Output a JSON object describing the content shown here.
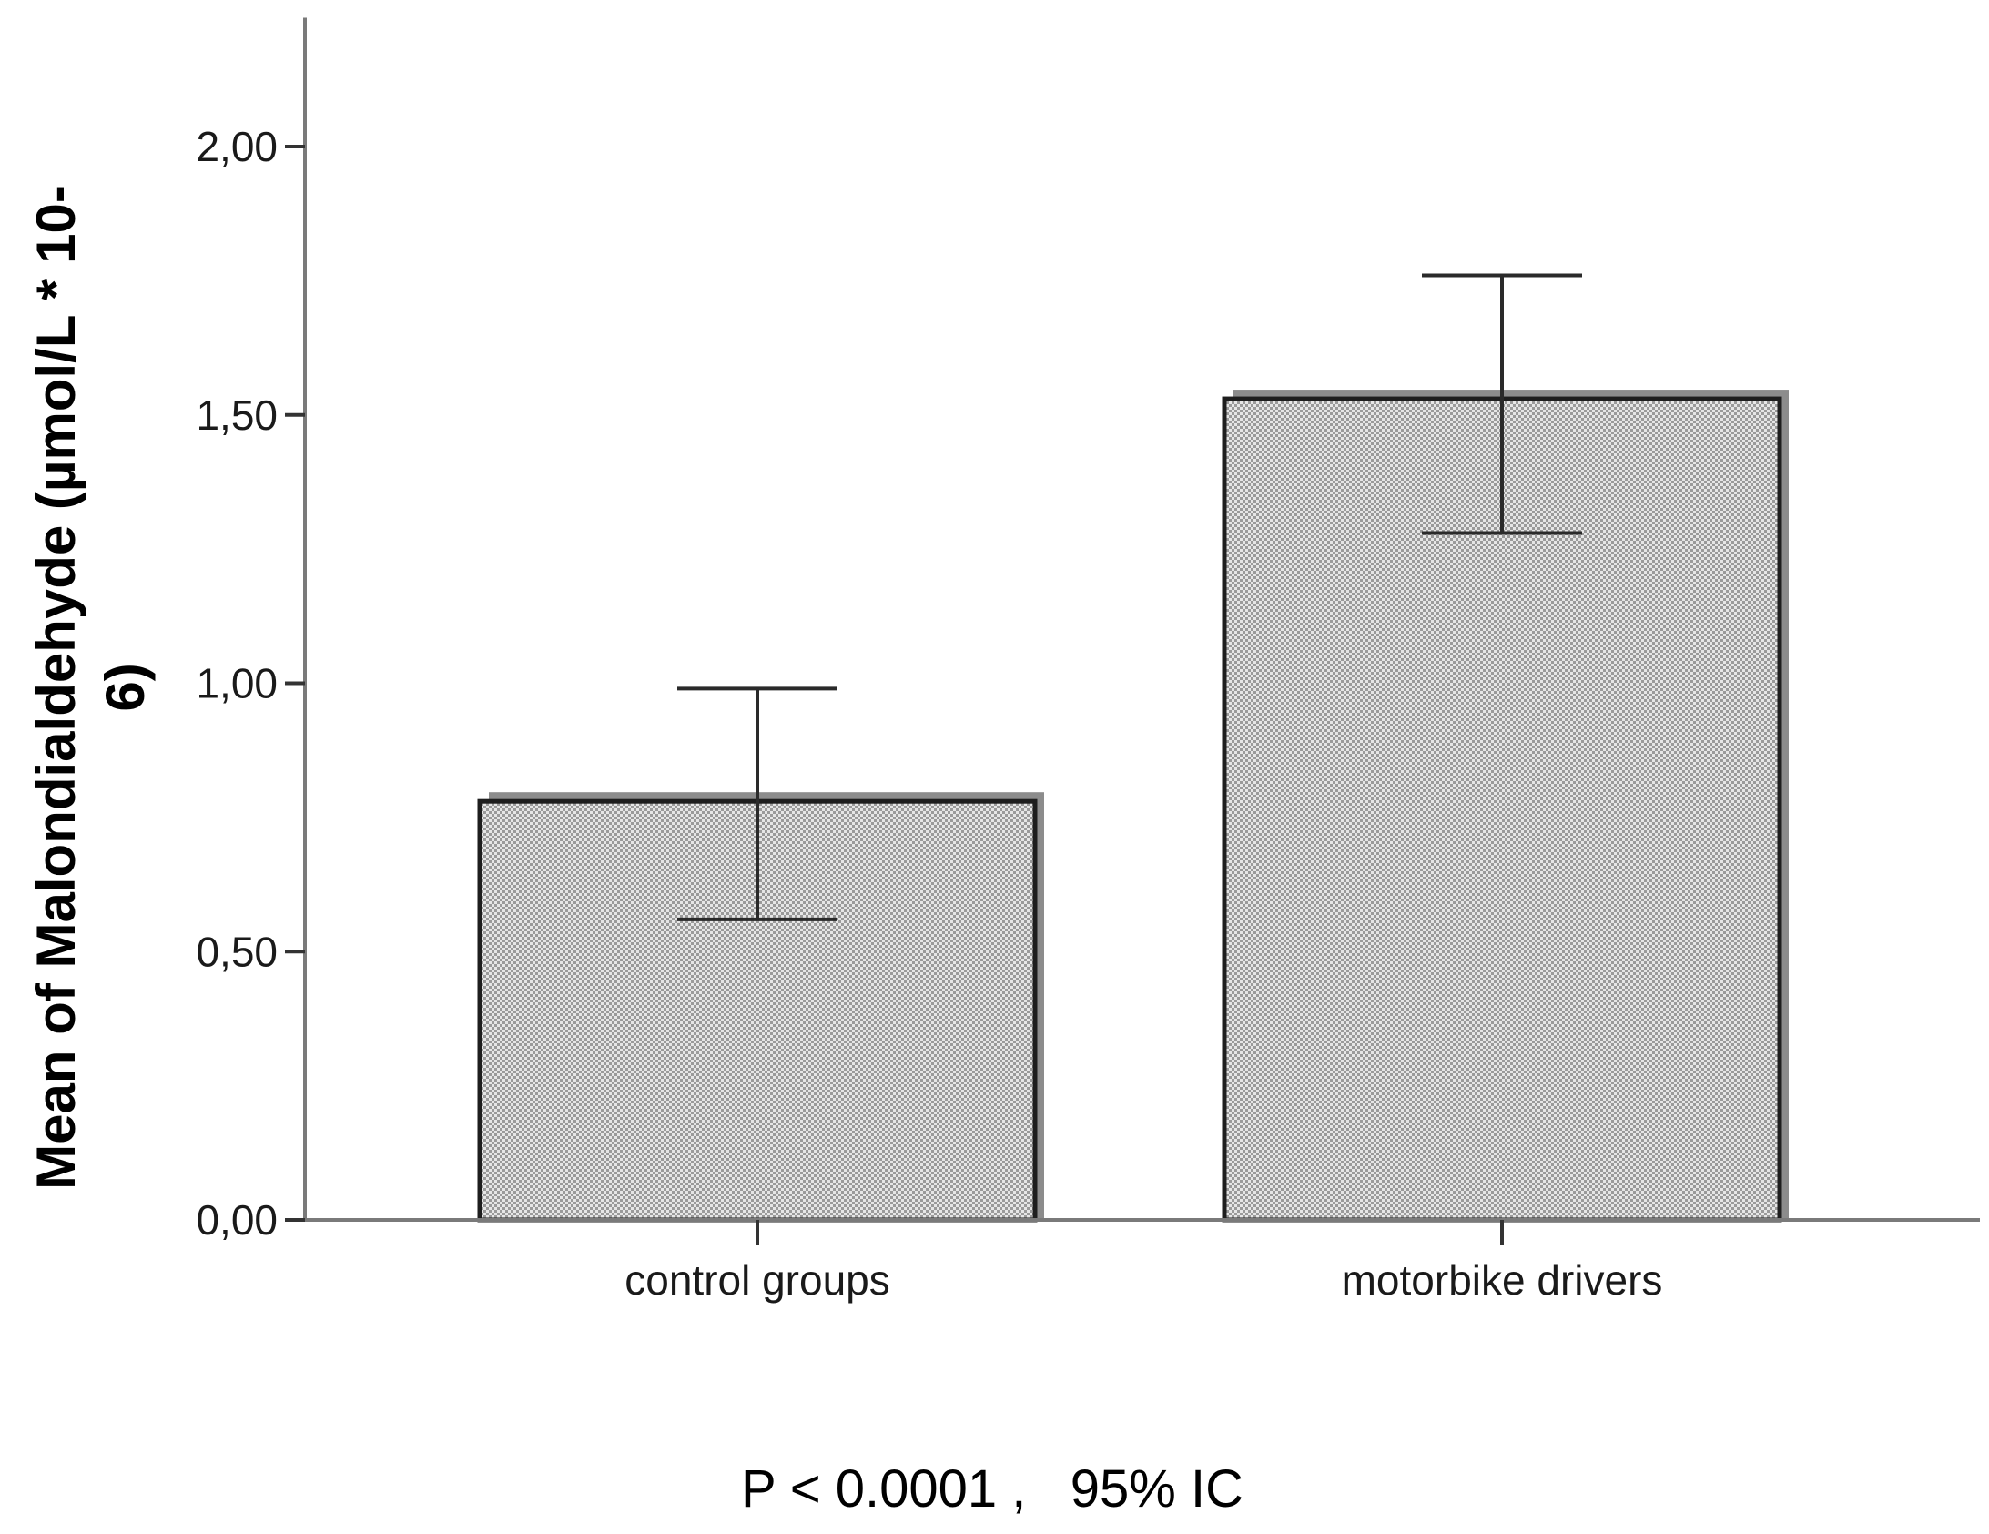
{
  "chart_data": {
    "type": "bar",
    "categories": [
      "control groups",
      "motorbike drivers"
    ],
    "values": [
      0.78,
      1.53
    ],
    "error_bars": [
      {
        "low": 0.56,
        "high": 0.99
      },
      {
        "low": 1.28,
        "high": 1.76
      }
    ],
    "title": "",
    "xlabel": "",
    "ylabel_lines": [
      "Mean of Malondialdehyde (µmol/L * 10-",
      "6)"
    ],
    "ylim": [
      0,
      2.24
    ],
    "yticks": [
      0,
      0.5,
      1.0,
      1.5,
      2.0
    ],
    "ytick_labels": [
      "0,00",
      "0,50",
      "1,00",
      "1,50",
      "2,00"
    ],
    "grid": false,
    "legend": "none",
    "bar_fill": "#e4e4e4",
    "bar_stroke": "#1e1e1e",
    "bar_shadow": "#8c8c8c",
    "axis_color": "#7a7a7a",
    "error_bar_color": "#2a2a2a",
    "footnote": "P < 0.0001 ,   95% IC"
  }
}
